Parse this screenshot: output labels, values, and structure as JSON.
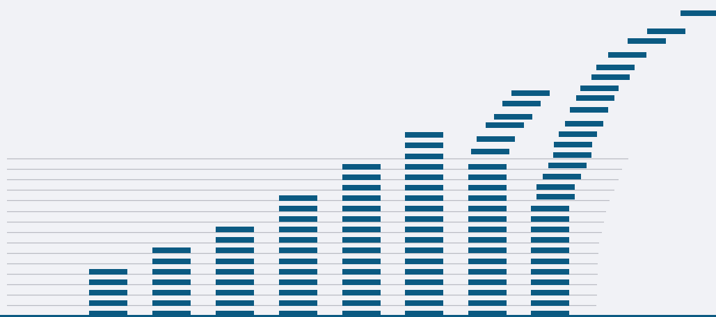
{
  "colors": {
    "background": "#f1f2f6",
    "dash": "#0b5a82",
    "rule": "#b9bbc2",
    "baseline": "#0b5a82"
  },
  "graphic": {
    "kind": "stacked-dash-columns",
    "column_dash_counts": [
      5,
      7,
      9,
      12,
      15,
      18,
      15,
      11
    ],
    "curved_tails": [
      {
        "after_column": 7,
        "extra_dashes": 7
      },
      {
        "after_column": 8,
        "extra_dashes": 16
      }
    ],
    "horizontal_rules": 15
  }
}
